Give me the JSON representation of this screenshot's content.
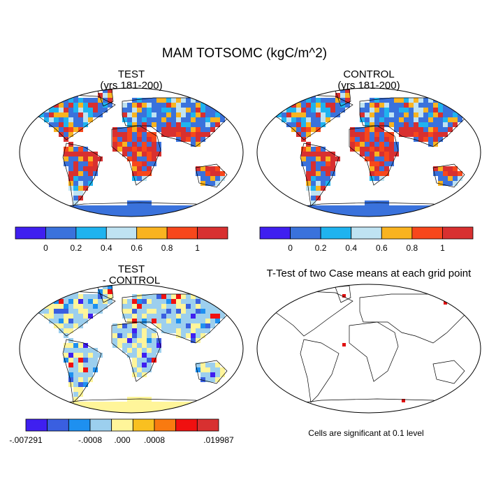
{
  "title": "MAM TOTSOMC (kgC/m^2)",
  "panels": [
    {
      "title": "TEST",
      "subtitle": "(yrs 181-200)"
    },
    {
      "title": "CONTROL",
      "subtitle": "(yrs 181-200)"
    },
    {
      "title": "TEST",
      "subtitle": "- CONTROL"
    },
    {
      "title": "T-Test of two Case means at each grid point"
    }
  ],
  "colorbars": [
    {
      "colors": [
        "#3f1ff0",
        "#3a72dc",
        "#1fb3ef",
        "#bfe3f2",
        "#f9b320",
        "#f7471c",
        "#d83030"
      ],
      "labels": [
        "0",
        "0.2",
        "0.4",
        "0.6",
        "0.8",
        "1"
      ]
    },
    {
      "colors": [
        "#3f1ff0",
        "#3a5fe0",
        "#1e90f0",
        "#9ccfee",
        "#fff59a",
        "#f9c020",
        "#f97a10",
        "#f01010",
        "#d83030"
      ],
      "labels": [
        "-.007291",
        "-.0008",
        ".000",
        ".0008",
        ".019987"
      ]
    }
  ],
  "note": "Cells are significant at 0.1 level"
}
